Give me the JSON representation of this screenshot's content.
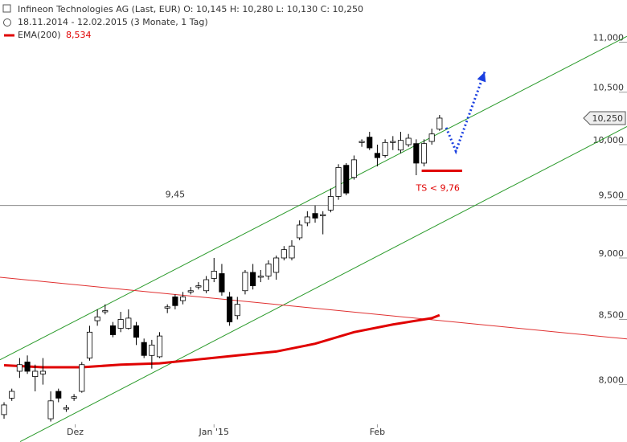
{
  "chart_data": {
    "type": "candlestick",
    "title": "Infineon Technologies AG (Last, EUR)  O: 10,145  H: 10,280  L: 10,130  C: 10,250",
    "subtitle": "18.11.2014 - 12.02.2015 (3 Monate, 1 Tag)",
    "log_scale": true,
    "ylim": [
      7.71,
      11.44
    ],
    "yticks": [
      {
        "value": 8,
        "label": "8,000"
      },
      {
        "value": 8.5,
        "label": "8,500"
      },
      {
        "value": 9,
        "label": "9,000"
      },
      {
        "value": 9.5,
        "label": "9,500"
      },
      {
        "value": 10,
        "label": "10,000"
      },
      {
        "value": 10.5,
        "label": "10,500"
      },
      {
        "value": 11,
        "label": "11,000"
      }
    ],
    "xlim": [
      -0.52,
      80.1
    ],
    "xticks": [
      {
        "value": 9.15,
        "label": "Dez"
      },
      {
        "value": 27,
        "label": "Jan '15"
      },
      {
        "value": 48,
        "label": "Feb"
      }
    ],
    "up_color": "#ffffff",
    "down_color": "#000000",
    "x": [
      0,
      1,
      2,
      3,
      4,
      5,
      6,
      7,
      8,
      9,
      10,
      11,
      12,
      13,
      14,
      15,
      16,
      17,
      18,
      19,
      20,
      21,
      22,
      23,
      24,
      25,
      26,
      27,
      28,
      29,
      30,
      31,
      32,
      33,
      34,
      35,
      36,
      37,
      38,
      39,
      40,
      41,
      42,
      43,
      44,
      45,
      46,
      47,
      48,
      49,
      50,
      51,
      52,
      53,
      54,
      55,
      56
    ],
    "open": [
      7.78,
      7.9,
      8.1,
      8.17,
      8.06,
      8.08,
      7.75,
      7.95,
      7.82,
      7.9,
      7.95,
      8.2,
      8.49,
      8.56,
      8.45,
      8.43,
      8.43,
      8.45,
      8.32,
      8.22,
      8.21,
      8.59,
      8.68,
      8.65,
      8.72,
      8.76,
      8.73,
      8.83,
      8.87,
      8.68,
      8.53,
      8.73,
      8.88,
      8.84,
      8.85,
      8.88,
      9.0,
      9.0,
      9.17,
      9.3,
      9.38,
      9.36,
      9.41,
      9.53,
      9.81,
      9.7,
      10.02,
      10.07,
      9.92,
      9.9,
      10.02,
      9.95,
      10.0,
      10.01,
      9.83,
      10.03,
      10.145
    ],
    "high": [
      7.87,
      7.97,
      8.2,
      8.22,
      8.15,
      8.2,
      7.95,
      7.97,
      7.85,
      7.93,
      8.17,
      8.45,
      8.58,
      8.62,
      8.48,
      8.56,
      8.58,
      8.48,
      8.35,
      8.34,
      8.4,
      8.62,
      8.7,
      8.72,
      8.76,
      8.8,
      8.85,
      9.0,
      8.95,
      8.72,
      8.68,
      8.9,
      8.95,
      8.9,
      8.98,
      9.02,
      9.1,
      9.15,
      9.32,
      9.4,
      9.45,
      9.4,
      9.6,
      9.82,
      9.83,
      9.9,
      10.05,
      10.12,
      10.0,
      10.05,
      10.08,
      10.12,
      10.1,
      10.05,
      10.05,
      10.15,
      10.28
    ],
    "low": [
      7.75,
      7.88,
      8.05,
      8.08,
      7.95,
      8.0,
      7.73,
      7.87,
      7.8,
      7.88,
      7.94,
      8.18,
      8.45,
      8.54,
      8.36,
      8.4,
      8.42,
      8.3,
      8.2,
      8.12,
      8.2,
      8.55,
      8.58,
      8.62,
      8.7,
      8.74,
      8.71,
      8.8,
      8.69,
      8.45,
      8.5,
      8.7,
      8.74,
      8.8,
      8.82,
      8.82,
      8.98,
      8.98,
      9.15,
      9.27,
      9.3,
      9.2,
      9.39,
      9.5,
      9.54,
      9.68,
      9.98,
      9.95,
      9.8,
      9.88,
      9.95,
      9.92,
      9.98,
      9.72,
      9.8,
      10.0,
      10.13
    ],
    "close": [
      7.85,
      7.95,
      8.15,
      8.1,
      8.1,
      8.1,
      7.88,
      7.9,
      7.83,
      7.91,
      8.15,
      8.4,
      8.52,
      8.57,
      8.38,
      8.5,
      8.51,
      8.36,
      8.22,
      8.3,
      8.37,
      8.6,
      8.61,
      8.68,
      8.73,
      8.77,
      8.82,
      8.89,
      8.72,
      8.48,
      8.62,
      8.88,
      8.77,
      8.85,
      8.95,
      9.0,
      9.07,
      9.1,
      9.28,
      9.35,
      9.34,
      9.37,
      9.53,
      9.79,
      9.56,
      9.86,
      10.03,
      9.97,
      9.88,
      10.02,
      10.03,
      10.04,
      10.06,
      9.83,
      10.01,
      10.1,
      10.25
    ],
    "last_price": {
      "value": 10.25,
      "label": "10,250"
    },
    "ema": {
      "name": "EMA(200)",
      "value_label": "8,534",
      "color": "#e00000",
      "x": [
        0,
        5,
        10,
        15,
        20,
        25,
        30,
        35,
        40,
        45,
        50,
        55,
        56
      ],
      "values": [
        8.145,
        8.13,
        8.13,
        8.15,
        8.16,
        8.19,
        8.22,
        8.25,
        8.31,
        8.4,
        8.46,
        8.51,
        8.534
      ]
    },
    "trendlines": [
      {
        "color": "#2a9a2a",
        "x": [
          -0.52,
          80.1
        ],
        "values": [
          8.187,
          11.06
        ]
      },
      {
        "color": "#2a9a2a",
        "x": [
          2.07,
          80.1
        ],
        "values": [
          7.587,
          10.17
        ]
      },
      {
        "color": "#e03030",
        "x": [
          -0.52,
          80.1
        ],
        "values": [
          8.84,
          8.347
        ]
      }
    ],
    "level": {
      "value": 9.45,
      "label": "9,45",
      "label_x": 22
    },
    "stop": {
      "value": 9.76,
      "label": "TS < 9,76",
      "x": [
        53.7,
        58.9
      ],
      "color": "#e00000"
    },
    "projection": {
      "color": "#1a3fe0",
      "x": [
        56.85,
        58.1,
        61.8
      ],
      "values": [
        10.16,
        9.94,
        10.7
      ]
    }
  }
}
